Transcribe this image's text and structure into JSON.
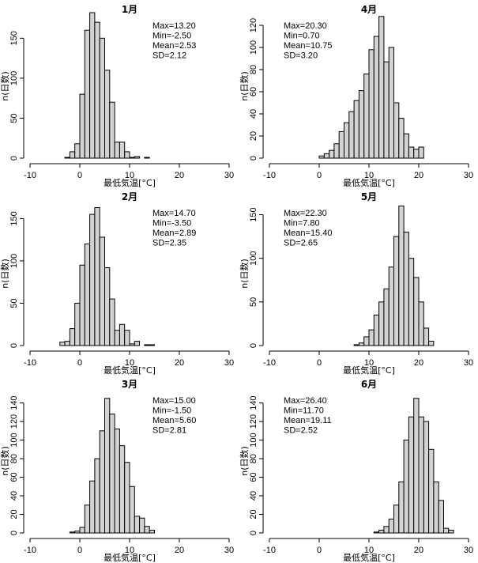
{
  "chart_data": [
    {
      "type": "bar",
      "title": "1月",
      "xlabel": "最低気温[°C]",
      "ylabel": "n(日数)",
      "xlim": [
        -10,
        30
      ],
      "ylim": [
        0,
        180
      ],
      "xticks": [
        "-10",
        "0",
        "10",
        "20",
        "30"
      ],
      "yticks": [
        "0",
        "50",
        "100",
        "150"
      ],
      "bin_width": 1,
      "x": [
        -3,
        -2,
        -1,
        0,
        1,
        2,
        3,
        4,
        5,
        6,
        7,
        8,
        9,
        10,
        11,
        12,
        13
      ],
      "values": [
        1,
        8,
        18,
        80,
        160,
        182,
        170,
        150,
        110,
        70,
        20,
        20,
        8,
        1,
        2,
        0,
        1
      ],
      "stats": [
        "Max=13.20",
        "Min=-2.50",
        "Mean=2.53",
        "SD=2.12"
      ]
    },
    {
      "type": "bar",
      "title": "4月",
      "xlabel": "最低気温[°C]",
      "ylabel": "n(日数)",
      "xlim": [
        -10,
        30
      ],
      "ylim": [
        0,
        130
      ],
      "xticks": [
        "-10",
        "0",
        "10",
        "20",
        "30"
      ],
      "yticks": [
        "0",
        "20",
        "40",
        "60",
        "80",
        "100",
        "120"
      ],
      "bin_width": 1,
      "x": [
        0,
        1,
        2,
        3,
        4,
        5,
        6,
        7,
        8,
        9,
        10,
        11,
        12,
        13,
        14,
        15,
        16,
        17,
        18,
        19,
        20
      ],
      "values": [
        2,
        4,
        7,
        13,
        24,
        32,
        42,
        52,
        61,
        76,
        98,
        110,
        128,
        87,
        100,
        50,
        36,
        22,
        10,
        8,
        10
      ],
      "stats": [
        "Max=20.30",
        "Min=0.70",
        "Mean=10.75",
        "SD=3.20"
      ]
    },
    {
      "type": "bar",
      "title": "2月",
      "xlabel": "最低気温[°C]",
      "ylabel": "n(日数)",
      "xlim": [
        -10,
        30
      ],
      "ylim": [
        0,
        170
      ],
      "xticks": [
        "-10",
        "0",
        "10",
        "20",
        "30"
      ],
      "yticks": [
        "0",
        "50",
        "100",
        "150"
      ],
      "bin_width": 1,
      "x": [
        -4,
        -3,
        -2,
        -1,
        0,
        1,
        2,
        3,
        4,
        5,
        6,
        7,
        8,
        9,
        10,
        11,
        12,
        13,
        14
      ],
      "values": [
        4,
        5,
        20,
        50,
        95,
        120,
        155,
        163,
        128,
        92,
        55,
        18,
        25,
        18,
        2,
        5,
        0,
        1,
        1
      ],
      "stats": [
        "Max=14.70",
        "Min=-3.50",
        "Mean=2.89",
        "SD=2.35"
      ]
    },
    {
      "type": "bar",
      "title": "5月",
      "xlabel": "最低気温[°C]",
      "ylabel": "n(日数)",
      "xlim": [
        -10,
        30
      ],
      "ylim": [
        0,
        165
      ],
      "xticks": [
        "-10",
        "0",
        "10",
        "20",
        "30"
      ],
      "yticks": [
        "0",
        "50",
        "100",
        "150"
      ],
      "bin_width": 1,
      "x": [
        7,
        8,
        9,
        10,
        11,
        12,
        13,
        14,
        15,
        16,
        17,
        18,
        19,
        20,
        21,
        22
      ],
      "values": [
        1,
        3,
        10,
        18,
        35,
        50,
        65,
        90,
        125,
        160,
        130,
        100,
        78,
        50,
        20,
        5
      ],
      "stats": [
        "Max=22.30",
        "Min=7.80",
        "Mean=15.40",
        "SD=2.65"
      ]
    },
    {
      "type": "bar",
      "title": "3月",
      "xlabel": "最低気温[°C]",
      "ylabel": "n(日数)",
      "xlim": [
        -10,
        30
      ],
      "ylim": [
        0,
        155
      ],
      "xticks": [
        "-10",
        "0",
        "10",
        "20",
        "30"
      ],
      "yticks": [
        "0",
        "20",
        "40",
        "60",
        "80",
        "100",
        "120",
        "140"
      ],
      "bin_width": 1,
      "x": [
        -2,
        -1,
        0,
        1,
        2,
        3,
        4,
        5,
        6,
        7,
        8,
        9,
        10,
        11,
        12,
        13,
        14
      ],
      "values": [
        1,
        2,
        6,
        30,
        56,
        80,
        110,
        145,
        128,
        112,
        94,
        76,
        50,
        18,
        16,
        7,
        3
      ],
      "stats": [
        "Max=15.00",
        "Min=-1.50",
        "Mean=5.60",
        "SD=2.81"
      ]
    },
    {
      "type": "bar",
      "title": "6月",
      "xlabel": "最低気温[°C]",
      "ylabel": "n(日数)",
      "xlim": [
        -10,
        30
      ],
      "ylim": [
        0,
        155
      ],
      "xticks": [
        "-10",
        "0",
        "10",
        "20",
        "30"
      ],
      "yticks": [
        "0",
        "20",
        "40",
        "60",
        "80",
        "100",
        "120",
        "140"
      ],
      "bin_width": 1,
      "x": [
        11,
        12,
        13,
        14,
        15,
        16,
        17,
        18,
        19,
        20,
        21,
        22,
        23,
        24,
        25,
        26
      ],
      "values": [
        1,
        3,
        7,
        15,
        30,
        55,
        100,
        125,
        145,
        125,
        120,
        90,
        55,
        35,
        5,
        3
      ],
      "stats": [
        "Max=26.40",
        "Min=11.70",
        "Mean=19.11",
        "SD=2.52"
      ]
    }
  ]
}
